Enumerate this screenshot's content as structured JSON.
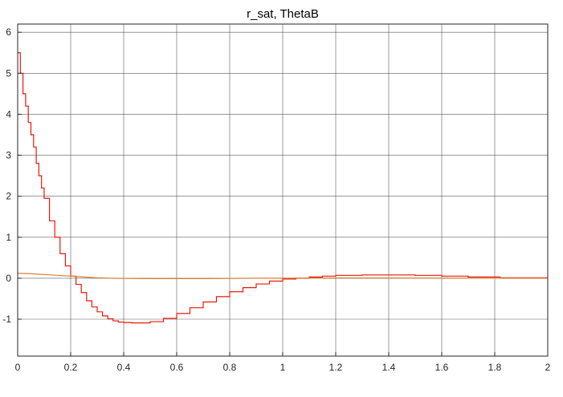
{
  "chart_data": {
    "type": "line",
    "title": "r_sat, ThetaB",
    "xlabel": "",
    "ylabel": "",
    "xlim": [
      0,
      2
    ],
    "ylim": [
      -1.9,
      6.2
    ],
    "grid": true,
    "x_ticks": [
      0,
      0.2,
      0.4,
      0.6,
      0.8,
      1,
      1.2,
      1.4,
      1.6,
      1.8,
      2
    ],
    "x_tick_labels": [
      "0",
      "0.2",
      "0.4",
      "0.6",
      "0.8",
      "1",
      "1.2",
      "1.4",
      "1.6",
      "1.8",
      "2"
    ],
    "y_ticks": [
      -1,
      0,
      1,
      2,
      3,
      4,
      5,
      6
    ],
    "y_tick_labels": [
      "-1",
      "0",
      "1",
      "2",
      "3",
      "4",
      "5",
      "6"
    ],
    "series": [
      {
        "color": "#e8190a",
        "step": true,
        "x": [
          0,
          0.01,
          0.02,
          0.03,
          0.04,
          0.05,
          0.06,
          0.07,
          0.08,
          0.09,
          0.1,
          0.12,
          0.14,
          0.16,
          0.18,
          0.2,
          0.22,
          0.24,
          0.26,
          0.28,
          0.3,
          0.32,
          0.34,
          0.36,
          0.38,
          0.4,
          0.43,
          0.46,
          0.5,
          0.55,
          0.6,
          0.65,
          0.7,
          0.75,
          0.8,
          0.85,
          0.9,
          0.95,
          1.0,
          1.05,
          1.1,
          1.15,
          1.2,
          1.3,
          1.4,
          1.5,
          1.6,
          1.7,
          1.82,
          2.0
        ],
        "values": [
          5.5,
          5.0,
          4.5,
          4.2,
          3.8,
          3.5,
          3.2,
          2.8,
          2.5,
          2.2,
          1.95,
          1.4,
          1.0,
          0.6,
          0.3,
          0.05,
          -0.15,
          -0.35,
          -0.55,
          -0.7,
          -0.82,
          -0.92,
          -0.99,
          -1.04,
          -1.07,
          -1.08,
          -1.09,
          -1.09,
          -1.06,
          -0.98,
          -0.86,
          -0.72,
          -0.58,
          -0.45,
          -0.33,
          -0.23,
          -0.14,
          -0.07,
          -0.02,
          0.0,
          0.03,
          0.05,
          0.07,
          0.08,
          0.08,
          0.07,
          0.05,
          0.03,
          0.01,
          0.01
        ]
      },
      {
        "color": "#d98032",
        "step": false,
        "x": [
          0,
          0.05,
          0.1,
          0.15,
          0.2,
          0.25,
          0.3,
          0.35,
          0.4,
          0.5,
          0.6,
          0.7,
          0.8,
          0.9,
          1.0,
          1.1,
          1.2,
          1.4,
          1.6,
          1.8,
          2.0
        ],
        "values": [
          0.12,
          0.11,
          0.09,
          0.07,
          0.05,
          0.03,
          0.01,
          0.0,
          -0.005,
          -0.01,
          -0.01,
          -0.01,
          -0.005,
          0.0,
          0.0,
          0.005,
          0.005,
          0.005,
          0.003,
          0.001,
          0.0
        ]
      }
    ]
  }
}
